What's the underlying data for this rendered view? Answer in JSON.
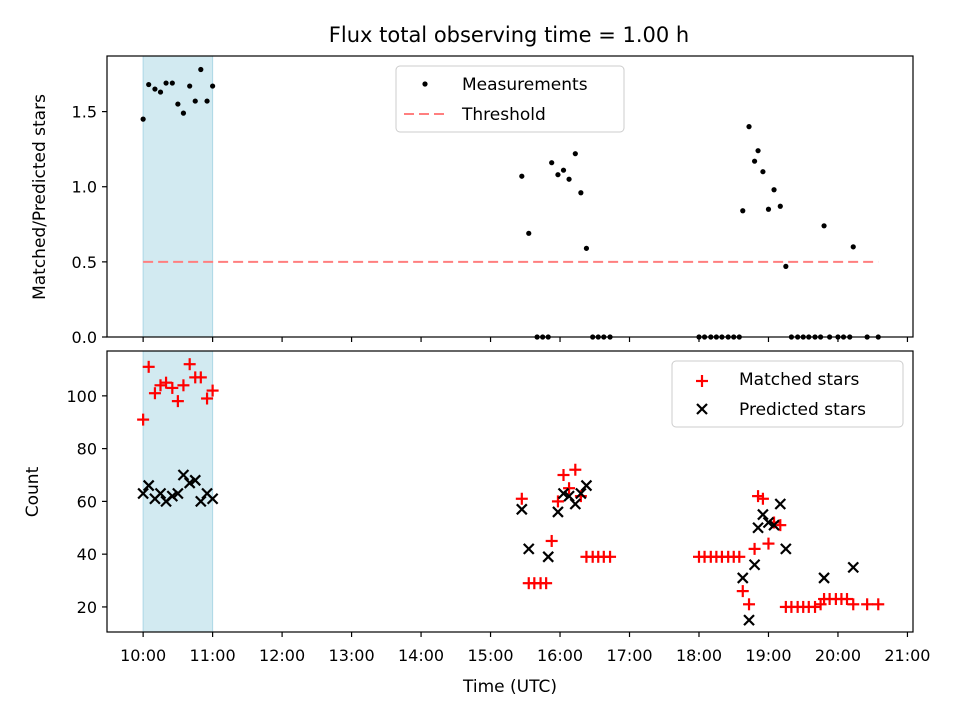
{
  "title": "Flux total observing time = 1.00 h",
  "xlabel": "Time (UTC)",
  "x_ticks": [
    "10:00",
    "11:00",
    "12:00",
    "13:00",
    "14:00",
    "15:00",
    "16:00",
    "17:00",
    "18:00",
    "19:00",
    "20:00",
    "21:00"
  ],
  "colors": {
    "matched": "#ff0000",
    "predicted": "#000000",
    "threshold": "#ff7f7f",
    "highlight": "#add8e6"
  },
  "chart_data": [
    {
      "type": "scatter",
      "panel": "top",
      "ylabel": "Matched/Predicted stars",
      "xlim_hours": [
        9.48,
        21.08
      ],
      "ylim": [
        0,
        1.87
      ],
      "y_ticks": [
        "0.0",
        "0.5",
        "1.0",
        "1.5"
      ],
      "highlight_span_hours": [
        10.0,
        11.0
      ],
      "legend": {
        "position": "top-center",
        "entries": [
          "Measurements",
          "Threshold"
        ]
      },
      "threshold": {
        "name": "Threshold",
        "value": 0.5,
        "x_start_hours": 10.0,
        "x_end_hours": 20.58
      },
      "series": [
        {
          "name": "Measurements",
          "x_hours": [
            10.0,
            10.08,
            10.17,
            10.25,
            10.33,
            10.42,
            10.5,
            10.58,
            10.67,
            10.75,
            10.83,
            10.92,
            11.0,
            15.45,
            15.55,
            15.67,
            15.75,
            15.83,
            15.88,
            15.97,
            16.05,
            16.13,
            16.22,
            16.3,
            16.38,
            16.47,
            16.55,
            16.63,
            16.72,
            18.0,
            18.08,
            18.17,
            18.25,
            18.33,
            18.42,
            18.5,
            18.58,
            18.63,
            18.72,
            18.8,
            18.85,
            18.92,
            19.0,
            19.08,
            19.17,
            19.25,
            19.33,
            19.42,
            19.5,
            19.58,
            19.67,
            19.75,
            19.8,
            19.88,
            20.0,
            20.08,
            20.17,
            20.22,
            20.42,
            20.58
          ],
          "values": [
            1.45,
            1.68,
            1.65,
            1.63,
            1.69,
            1.69,
            1.55,
            1.49,
            1.67,
            1.57,
            1.78,
            1.57,
            1.67,
            1.07,
            0.69,
            0,
            0,
            0,
            1.16,
            1.08,
            1.11,
            1.05,
            1.22,
            0.96,
            0.59,
            0,
            0,
            0,
            0,
            0,
            0,
            0,
            0,
            0,
            0,
            0,
            0,
            0.84,
            1.4,
            1.17,
            1.24,
            1.1,
            0.85,
            0.98,
            0.87,
            0.47,
            0,
            0,
            0,
            0,
            0,
            0,
            0.74,
            0,
            0,
            0,
            0,
            0.6,
            0,
            0
          ]
        }
      ]
    },
    {
      "type": "scatter",
      "panel": "bottom",
      "ylabel": "Count",
      "xlim_hours": [
        9.48,
        21.08
      ],
      "ylim": [
        10.5,
        117
      ],
      "y_ticks": [
        "20",
        "40",
        "60",
        "80",
        "100"
      ],
      "highlight_span_hours": [
        10.0,
        11.0
      ],
      "legend": {
        "position": "top-right",
        "entries": [
          "Matched stars",
          "Predicted stars"
        ]
      },
      "series": [
        {
          "name": "Matched stars",
          "marker": "+",
          "x_hours": [
            10.0,
            10.08,
            10.17,
            10.25,
            10.33,
            10.42,
            10.5,
            10.58,
            10.67,
            10.75,
            10.83,
            10.92,
            11.0,
            15.45,
            15.55,
            15.63,
            15.72,
            15.8,
            15.88,
            15.97,
            16.05,
            16.13,
            16.22,
            16.3,
            16.38,
            16.47,
            16.55,
            16.63,
            16.72,
            18.0,
            18.08,
            18.17,
            18.25,
            18.33,
            18.42,
            18.5,
            18.58,
            18.63,
            18.72,
            18.8,
            18.85,
            18.92,
            19.0,
            19.08,
            19.17,
            19.25,
            19.33,
            19.42,
            19.5,
            19.58,
            19.67,
            19.75,
            19.8,
            19.88,
            19.97,
            20.05,
            20.13,
            20.22,
            20.42,
            20.58
          ],
          "values": [
            91,
            111,
            101,
            104,
            105,
            103,
            98,
            104,
            112,
            107,
            107,
            99,
            102,
            61,
            29,
            29,
            29,
            29,
            45,
            60,
            70,
            65,
            72,
            62,
            39,
            39,
            39,
            39,
            39,
            39,
            39,
            39,
            39,
            39,
            39,
            39,
            39,
            26,
            21,
            42,
            62,
            61,
            44,
            52,
            51,
            20,
            20,
            20,
            20,
            20,
            20,
            21,
            23,
            23,
            23,
            23,
            23,
            21,
            21,
            21
          ]
        },
        {
          "name": "Predicted stars",
          "marker": "x",
          "x_hours": [
            10.0,
            10.08,
            10.17,
            10.25,
            10.33,
            10.42,
            10.5,
            10.58,
            10.67,
            10.75,
            10.83,
            10.92,
            11.0,
            15.45,
            15.55,
            15.83,
            15.97,
            16.05,
            16.13,
            16.22,
            16.3,
            16.38,
            18.63,
            18.72,
            18.8,
            18.85,
            18.92,
            19.0,
            19.08,
            19.17,
            19.25,
            19.8,
            20.22
          ],
          "values": [
            63,
            66,
            61,
            63,
            60,
            62,
            63,
            70,
            67,
            68,
            60,
            63,
            61,
            57,
            42,
            39,
            56,
            63,
            62,
            59,
            63,
            66,
            31,
            15,
            36,
            50,
            55,
            52,
            51,
            59,
            42,
            31,
            35
          ]
        }
      ]
    }
  ]
}
